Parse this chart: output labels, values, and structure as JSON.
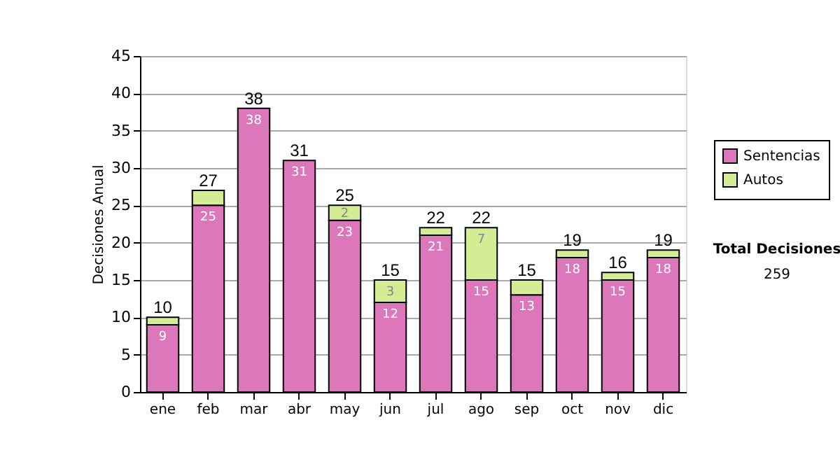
{
  "chart_data": {
    "type": "bar",
    "stacked": true,
    "ylabel": "Decisiones Anual",
    "categories": [
      "ene",
      "feb",
      "mar",
      "abr",
      "may",
      "jun",
      "jul",
      "ago",
      "sep",
      "oct",
      "nov",
      "dic"
    ],
    "series": [
      {
        "name": "Sentencias",
        "color": "#dd77bb",
        "values": [
          9,
          25,
          38,
          31,
          23,
          12,
          21,
          15,
          13,
          18,
          15,
          18
        ],
        "value_labels": [
          "9",
          "25",
          "38",
          "31",
          "23",
          "12",
          "21",
          "15",
          "13",
          "18",
          "15",
          "18"
        ]
      },
      {
        "name": "Autos",
        "color": "#d4ec94",
        "values": [
          1,
          2,
          0,
          0,
          2,
          3,
          1,
          7,
          2,
          1,
          1,
          1
        ],
        "value_labels": [
          null,
          null,
          null,
          null,
          "2",
          "3",
          null,
          "7",
          null,
          null,
          null,
          null
        ]
      }
    ],
    "totals": [
      "10",
      "27",
      "38",
      "31",
      "25",
      "15",
      "22",
      "22",
      "15",
      "19",
      "16",
      "19"
    ],
    "ylim": [
      0,
      45
    ],
    "yticks": [
      0,
      5,
      10,
      15,
      20,
      25,
      30,
      35,
      40,
      45
    ],
    "grid": "y",
    "legend": "right",
    "annotations": [
      "Total Decisiones",
      "259"
    ]
  }
}
